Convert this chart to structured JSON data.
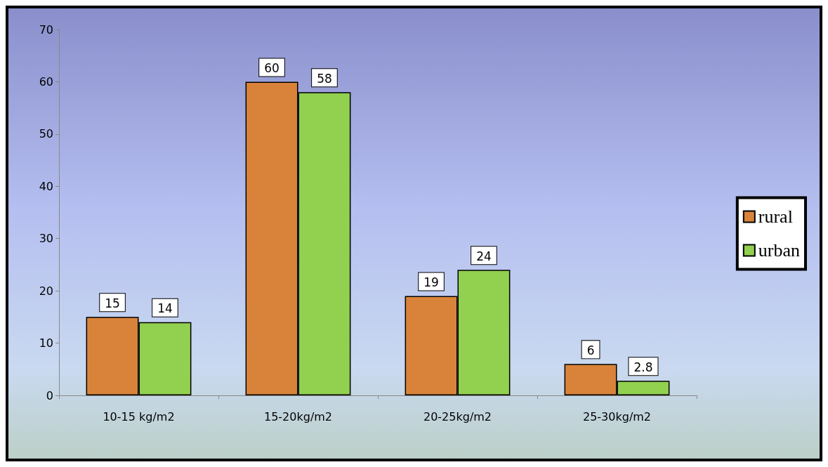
{
  "chart_data": {
    "type": "bar",
    "categories": [
      "10-15 kg/m2",
      "15-20kg/m2",
      "20-25kg/m2",
      "25-30kg/m2"
    ],
    "series": [
      {
        "name": "rural",
        "color": "#d9833a",
        "values": [
          15,
          60,
          19,
          6
        ]
      },
      {
        "name": "urban",
        "color": "#92d050",
        "values": [
          14,
          58,
          24,
          2.8
        ]
      }
    ],
    "ylim": [
      0,
      70
    ],
    "yticks": [
      0,
      10,
      20,
      30,
      40,
      50,
      60,
      70
    ],
    "grid": false,
    "legend": "right",
    "data_labels": true
  }
}
